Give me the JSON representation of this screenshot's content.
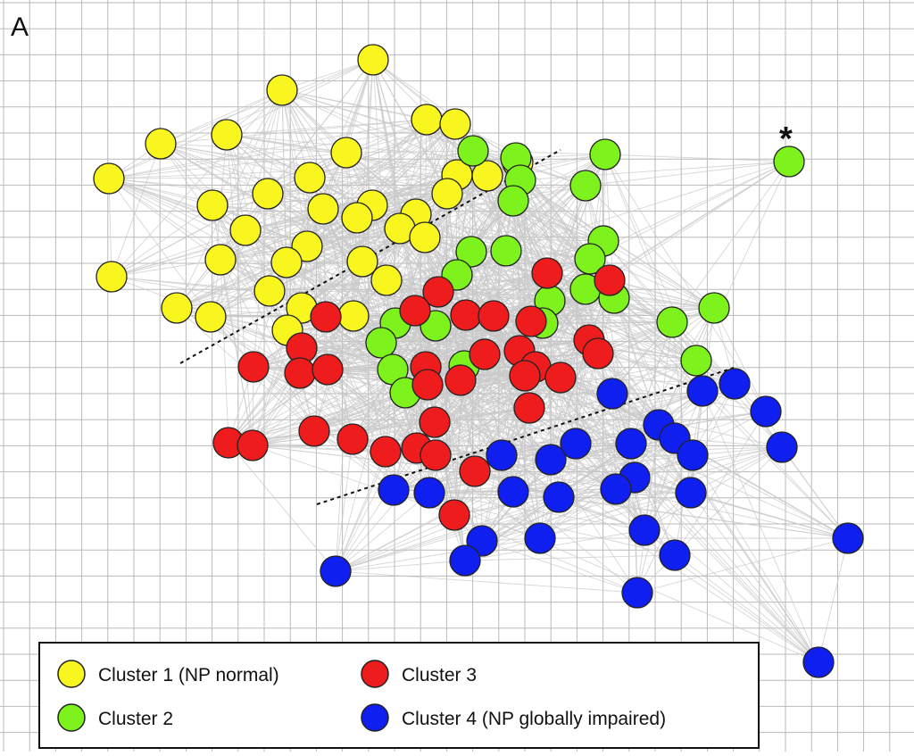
{
  "panel_label": "A",
  "annotation": "*",
  "colors": {
    "cluster1": "#f8f51f",
    "cluster2": "#7ef21c",
    "cluster3": "#ee1c1c",
    "cluster4": "#0f1ff0",
    "node_stroke": "#222222",
    "edge": "#c8c8c8",
    "grid": "#b9b9b9"
  },
  "legend": {
    "items": [
      {
        "label": "Cluster 1 (NP normal)",
        "color": "#f8f51f"
      },
      {
        "label": "Cluster 2",
        "color": "#7ef21c"
      },
      {
        "label": "Cluster 3",
        "color": "#ee1c1c"
      },
      {
        "label": "Cluster 4 (NP globally impaired)",
        "color": "#0f1ff0"
      }
    ]
  },
  "clusters": [
    {
      "id": 1,
      "name": "Cluster 1 (NP normal)",
      "color": "#f8f51f"
    },
    {
      "id": 2,
      "name": "Cluster 2",
      "color": "#7ef21c"
    },
    {
      "id": 3,
      "name": "Cluster 3",
      "color": "#ee1c1c"
    },
    {
      "id": 4,
      "name": "Cluster 4 (NP globally impaired)",
      "color": "#0f1ff0"
    }
  ]
}
